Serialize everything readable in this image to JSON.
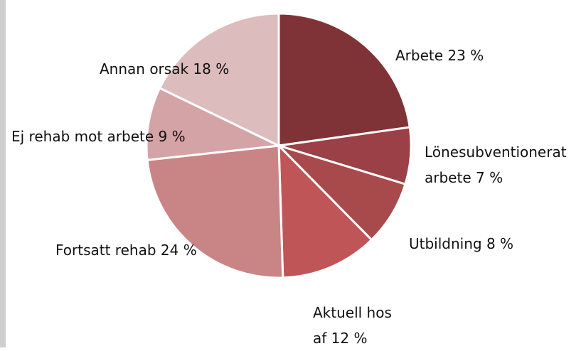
{
  "chart_data": {
    "type": "pie",
    "categories": [
      "Arbete",
      "Lönesubventionerat arbete",
      "Utbildning",
      "Aktuell hos af",
      "Fortsatt rehab",
      "Ej rehab mot arbete",
      "Annan orsak"
    ],
    "values": [
      23,
      7,
      8,
      12,
      24,
      9,
      18
    ],
    "value_labels": [
      "23 %",
      "7 %",
      "8 %",
      "12 %",
      "24 %",
      "9 %",
      "18 %"
    ],
    "colors": [
      "#7f3336",
      "#9a4046",
      "#a84a4c",
      "#c05558",
      "#c98486",
      "#d4a3a6",
      "#ddbcbe"
    ]
  }
}
